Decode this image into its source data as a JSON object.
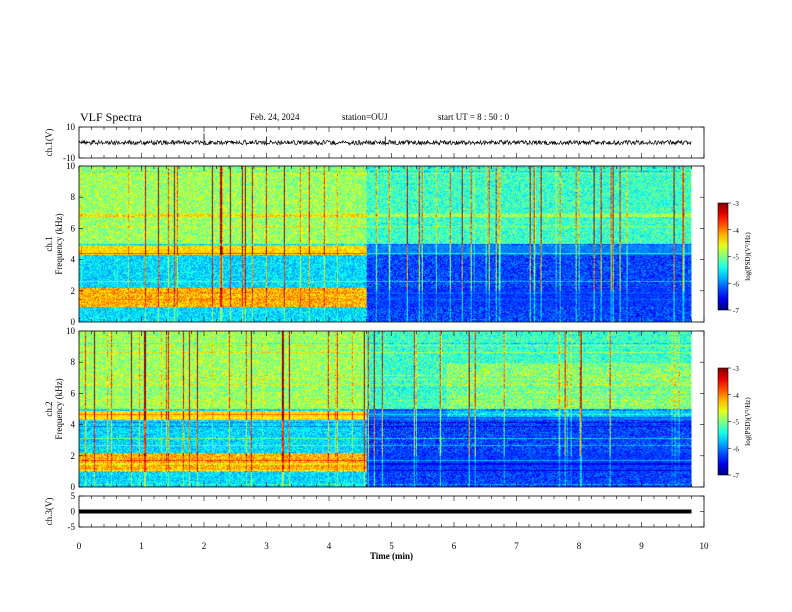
{
  "header": {
    "title": "VLF Spectra",
    "date": "Feb. 24, 2024",
    "station": "station=OUJ",
    "start_ut": "start  UT =  8 : 50 : 0"
  },
  "chart_data": [
    {
      "type": "line",
      "name": "ch1-waveform",
      "ylabel": "ch.1(V)",
      "ylim": [
        -10,
        10
      ],
      "yticks": [
        {
          "v": 10,
          "t": "10"
        },
        {
          "v": -10,
          "t": "-10"
        }
      ],
      "xlim": [
        0,
        10
      ],
      "level": 0
    },
    {
      "type": "heatmap",
      "name": "ch1-spectrogram",
      "ylabel": "ch.1\nFrequency (kHz)",
      "ylim": [
        0,
        10
      ],
      "yticks": [
        "0",
        "2",
        "4",
        "6",
        "8",
        "10"
      ],
      "xlim": [
        0,
        10
      ],
      "data_end_min": 9.8,
      "transition_min": 4.6,
      "colorbar": {
        "label": "log(PSD)(V²/Hz)",
        "range": [
          -7,
          -3
        ],
        "ticks": [
          "-3",
          "-4",
          "-5",
          "-6",
          "-7"
        ]
      }
    },
    {
      "type": "heatmap",
      "name": "ch2-spectrogram",
      "ylabel": "ch.2\nFrequency (kHz)",
      "ylim": [
        0,
        10
      ],
      "yticks": [
        "0",
        "2",
        "4",
        "6",
        "8",
        "10"
      ],
      "xlim": [
        0,
        10
      ],
      "data_end_min": 9.8,
      "transition_min": 4.6,
      "colorbar": {
        "label": "log(PSD)(V²/Hz)",
        "range": [
          -7,
          -3
        ],
        "ticks": [
          "-3",
          "-4",
          "-5",
          "-6",
          "-7"
        ]
      }
    },
    {
      "type": "line",
      "name": "ch3-waveform",
      "ylabel": "ch.3(V)",
      "ylim": [
        -5,
        5
      ],
      "yticks": [
        {
          "v": 5,
          "t": "5"
        },
        {
          "v": 0,
          "t": "0"
        },
        {
          "v": -5,
          "t": "-5"
        }
      ],
      "xlim": [
        0,
        10
      ],
      "level": 0
    }
  ],
  "xaxis": {
    "label": "Time (min)",
    "ticks": [
      "0",
      "1",
      "2",
      "3",
      "4",
      "5",
      "6",
      "7",
      "8",
      "9",
      "10"
    ]
  }
}
